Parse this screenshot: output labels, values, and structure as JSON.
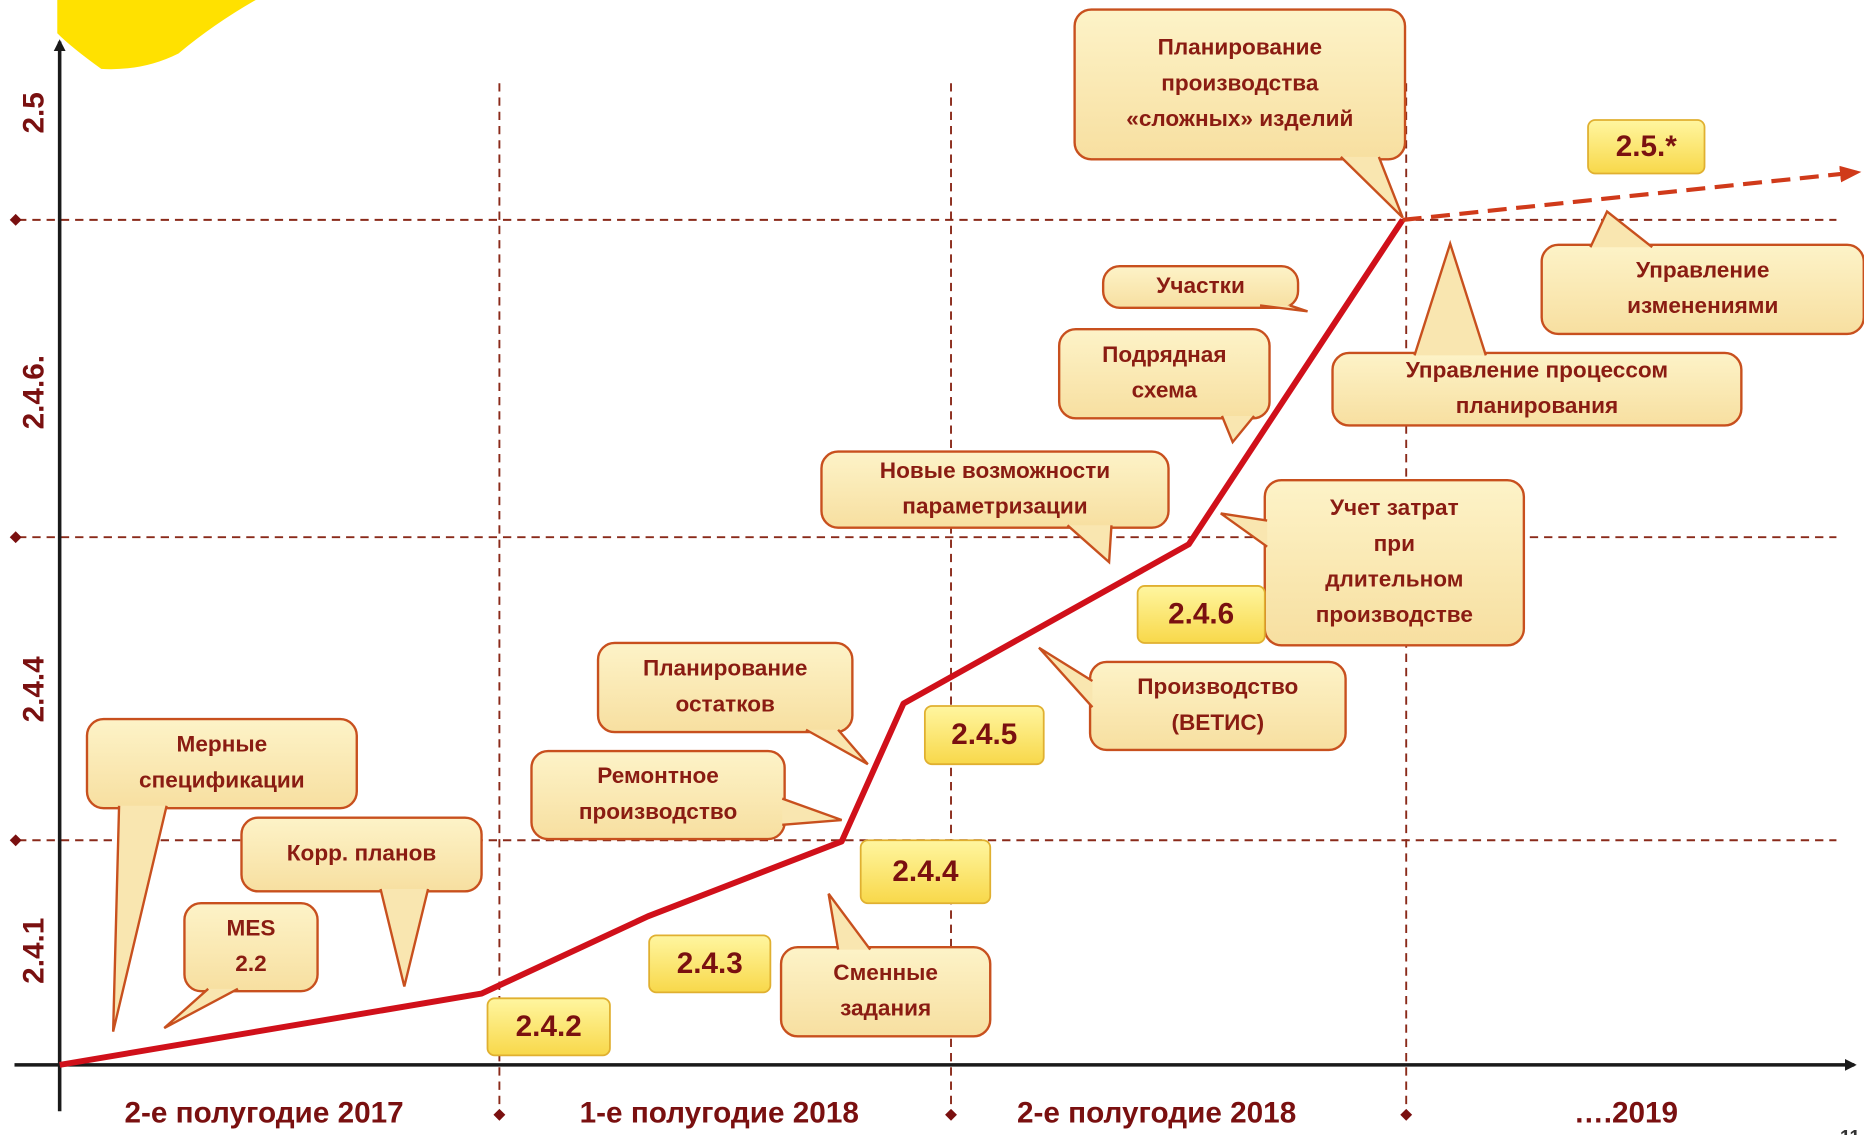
{
  "y_axis_labels": [
    "2.4.1",
    "2.4.4",
    "2.4.6.",
    "2.5"
  ],
  "periods": [
    "2-е полугодие 2017",
    "1-е полугодие 2018",
    "2-е полугодие 2018",
    "….2019"
  ],
  "versions": [
    "2.4.2",
    "2.4.3",
    "2.4.4",
    "2.4.5",
    "2.4.6",
    "2.5.*"
  ],
  "callouts": [
    {
      "lines": [
        "Мерные",
        "спецификации"
      ]
    },
    {
      "lines": [
        "Корр. планов"
      ]
    },
    {
      "lines": [
        "MES",
        "2.2"
      ]
    },
    {
      "lines": [
        "Ремонтное",
        "производство"
      ]
    },
    {
      "lines": [
        "Планирование",
        "остатков"
      ]
    },
    {
      "lines": [
        "Сменные",
        "задания"
      ]
    },
    {
      "lines": [
        "Новые возможности",
        "параметризации"
      ]
    },
    {
      "lines": [
        "Подрядная",
        "схема"
      ]
    },
    {
      "lines": [
        "Участки"
      ]
    },
    {
      "lines": [
        "Учет затрат",
        "при",
        "длительном",
        "производстве"
      ]
    },
    {
      "lines": [
        "Производство",
        "(ВЕТИС)"
      ]
    },
    {
      "lines": [
        "Планирование",
        "производства",
        "«сложных» изделий"
      ]
    },
    {
      "lines": [
        "Управление процессом",
        "планирования"
      ]
    },
    {
      "lines": [
        "Управление",
        "изменениями"
      ]
    }
  ],
  "page_number": "11"
}
